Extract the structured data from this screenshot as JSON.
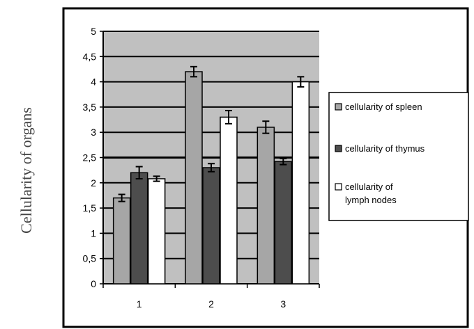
{
  "chart_data": {
    "type": "bar",
    "categories": [
      "1",
      "2",
      "3"
    ],
    "series": [
      {
        "name": "cellularity of spleen",
        "values": [
          1.7,
          4.2,
          3.1
        ],
        "errors": [
          0.07,
          0.1,
          0.12
        ],
        "color": "#a6a6a6"
      },
      {
        "name": "cellularity of thymus",
        "values": [
          2.2,
          2.3,
          2.42
        ],
        "errors": [
          0.12,
          0.08,
          0.06
        ],
        "color": "#4d4d4d"
      },
      {
        "name": "cellularity of lymph nodes",
        "values": [
          2.08,
          3.3,
          4.0
        ],
        "errors": [
          0.05,
          0.13,
          0.1
        ],
        "color": "#ffffff"
      }
    ],
    "ylabel": "Cellularity of organs",
    "xlabel": "",
    "ylim": [
      0,
      5
    ],
    "yticks": [
      "0",
      "0,5",
      "1",
      "1,5",
      "2",
      "2,5",
      "3",
      "3,5",
      "4",
      "4,5",
      "5"
    ],
    "plot_background": "#c0c0c0",
    "grid": true,
    "legend_position": "right",
    "legend_labels": [
      [
        "cellularity of spleen"
      ],
      [
        "cellularity of thymus"
      ],
      [
        "cellularity of",
        "lymph nodes"
      ]
    ]
  }
}
